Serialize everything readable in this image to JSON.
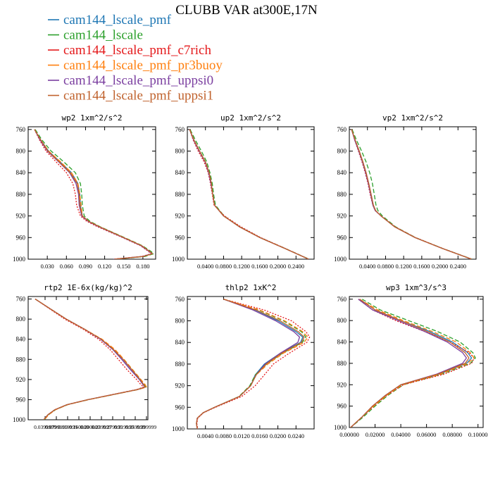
{
  "figure": {
    "title": "CLUBB VAR at300E,17N"
  },
  "legend": [
    {
      "name": "cam144_lscale_pmf",
      "color": "#1f77b4",
      "dash": "solid"
    },
    {
      "name": "cam144_lscale",
      "color": "#2ca02c",
      "dash": "dashed"
    },
    {
      "name": "cam144_lscale_pmf_c7rich",
      "color": "#e41a1c",
      "dash": "dotted"
    },
    {
      "name": "cam144_lscale_pmf_pr3buoy",
      "color": "#ff7f0e",
      "dash": "dashed"
    },
    {
      "name": "cam144_lscale_pmf_uppsi0",
      "color": "#7b3fa0",
      "dash": "solid"
    },
    {
      "name": "cam144_lscale_pmf_uppsi1",
      "color": "#c0622d",
      "dash": "solid"
    }
  ],
  "chart_data": [
    {
      "type": "line",
      "title": "wp2   1xm^2/s^2",
      "xlim": [
        0.0,
        0.2
      ],
      "xticks": [
        0.03,
        0.06,
        0.09,
        0.12,
        0.15,
        0.18
      ],
      "xticklabels": [
        "0.030",
        "0.060",
        "0.090",
        "0.120",
        "0.150",
        "0.180"
      ],
      "ylim": [
        1000,
        755
      ],
      "yticks": [
        760,
        800,
        840,
        880,
        920,
        960,
        1000
      ],
      "y": [
        760,
        780,
        800,
        820,
        840,
        860,
        880,
        900,
        920,
        930,
        940,
        960,
        975,
        985,
        990,
        995,
        1000
      ],
      "series": [
        {
          "name": "cam144_lscale_pmf",
          "values": [
            0.01,
            0.02,
            0.032,
            0.05,
            0.068,
            0.078,
            0.081,
            0.082,
            0.085,
            0.095,
            0.112,
            0.15,
            0.178,
            0.19,
            0.195,
            0.18,
            0.135
          ]
        },
        {
          "name": "cam144_lscale",
          "values": [
            0.011,
            0.022,
            0.036,
            0.056,
            0.074,
            0.082,
            0.084,
            0.085,
            0.088,
            0.097,
            0.113,
            0.151,
            0.179,
            0.192,
            0.197,
            0.183,
            0.138
          ]
        },
        {
          "name": "cam144_lscale_pmf_c7rich",
          "values": [
            0.01,
            0.018,
            0.028,
            0.044,
            0.06,
            0.07,
            0.074,
            0.076,
            0.082,
            0.092,
            0.109,
            0.148,
            0.176,
            0.188,
            0.193,
            0.178,
            0.133
          ]
        },
        {
          "name": "cam144_lscale_pmf_pr3buoy",
          "values": [
            0.01,
            0.02,
            0.032,
            0.051,
            0.068,
            0.078,
            0.081,
            0.083,
            0.085,
            0.095,
            0.112,
            0.15,
            0.178,
            0.19,
            0.195,
            0.18,
            0.135
          ]
        },
        {
          "name": "cam144_lscale_pmf_uppsi0",
          "values": [
            0.01,
            0.019,
            0.03,
            0.048,
            0.065,
            0.075,
            0.079,
            0.08,
            0.084,
            0.094,
            0.111,
            0.149,
            0.177,
            0.189,
            0.194,
            0.179,
            0.134
          ]
        },
        {
          "name": "cam144_lscale_pmf_uppsi1",
          "values": [
            0.01,
            0.02,
            0.031,
            0.049,
            0.066,
            0.077,
            0.08,
            0.081,
            0.085,
            0.095,
            0.112,
            0.15,
            0.178,
            0.19,
            0.195,
            0.18,
            0.135
          ]
        }
      ]
    },
    {
      "type": "line",
      "title": "up2   1xm^2/s^2",
      "xlim": [
        0.0,
        0.28
      ],
      "xticks": [
        0.04,
        0.08,
        0.12,
        0.16,
        0.2,
        0.24
      ],
      "xticklabels": [
        "0.0400",
        "0.0800",
        "0.1200",
        "0.1600",
        "0.2000",
        "0.2400"
      ],
      "ylim": [
        1000,
        755
      ],
      "yticks": [
        760,
        800,
        840,
        880,
        920,
        960,
        1000
      ],
      "y": [
        760,
        780,
        800,
        820,
        840,
        860,
        880,
        900,
        920,
        940,
        960,
        980,
        1000
      ],
      "series": [
        {
          "name": "cam144_lscale_pmf",
          "values": [
            0.005,
            0.015,
            0.027,
            0.04,
            0.048,
            0.053,
            0.056,
            0.06,
            0.08,
            0.115,
            0.16,
            0.215,
            0.268
          ]
        },
        {
          "name": "cam144_lscale",
          "values": [
            0.006,
            0.018,
            0.031,
            0.043,
            0.05,
            0.055,
            0.058,
            0.062,
            0.081,
            0.116,
            0.161,
            0.216,
            0.269
          ]
        },
        {
          "name": "cam144_lscale_pmf_c7rich",
          "values": [
            0.005,
            0.013,
            0.024,
            0.037,
            0.046,
            0.051,
            0.055,
            0.059,
            0.082,
            0.118,
            0.162,
            0.216,
            0.268
          ]
        },
        {
          "name": "cam144_lscale_pmf_pr3buoy",
          "values": [
            0.005,
            0.015,
            0.027,
            0.04,
            0.048,
            0.053,
            0.056,
            0.06,
            0.08,
            0.115,
            0.16,
            0.215,
            0.268
          ]
        },
        {
          "name": "cam144_lscale_pmf_uppsi0",
          "values": [
            0.005,
            0.014,
            0.026,
            0.039,
            0.047,
            0.052,
            0.056,
            0.06,
            0.08,
            0.115,
            0.16,
            0.215,
            0.268
          ]
        },
        {
          "name": "cam144_lscale_pmf_uppsi1",
          "values": [
            0.005,
            0.015,
            0.027,
            0.04,
            0.048,
            0.053,
            0.056,
            0.06,
            0.08,
            0.115,
            0.16,
            0.215,
            0.268
          ]
        }
      ]
    },
    {
      "type": "line",
      "title": "vp2   1xm^2/s^2",
      "xlim": [
        0.0,
        0.28
      ],
      "xticks": [
        0.04,
        0.08,
        0.12,
        0.16,
        0.2,
        0.24
      ],
      "xticklabels": [
        "0.0400",
        "0.0800",
        "0.1200",
        "0.1600",
        "0.2000",
        "0.2400"
      ],
      "ylim": [
        1000,
        755
      ],
      "yticks": [
        760,
        800,
        840,
        880,
        920,
        960,
        1000
      ],
      "y": [
        760,
        780,
        800,
        820,
        840,
        860,
        880,
        900,
        910,
        920,
        940,
        960,
        980,
        1000
      ],
      "series": [
        {
          "name": "cam144_lscale_pmf",
          "values": [
            0.005,
            0.013,
            0.022,
            0.03,
            0.037,
            0.043,
            0.048,
            0.053,
            0.058,
            0.07,
            0.1,
            0.145,
            0.205,
            0.27
          ]
        },
        {
          "name": "cam144_lscale",
          "values": [
            0.006,
            0.016,
            0.027,
            0.037,
            0.045,
            0.051,
            0.055,
            0.059,
            0.063,
            0.073,
            0.102,
            0.146,
            0.206,
            0.271
          ]
        },
        {
          "name": "cam144_lscale_pmf_c7rich",
          "values": [
            0.005,
            0.012,
            0.02,
            0.028,
            0.035,
            0.041,
            0.046,
            0.052,
            0.057,
            0.07,
            0.101,
            0.146,
            0.206,
            0.27
          ]
        },
        {
          "name": "cam144_lscale_pmf_pr3buoy",
          "values": [
            0.005,
            0.013,
            0.022,
            0.03,
            0.037,
            0.043,
            0.048,
            0.053,
            0.058,
            0.07,
            0.1,
            0.145,
            0.205,
            0.27
          ]
        },
        {
          "name": "cam144_lscale_pmf_uppsi0",
          "values": [
            0.005,
            0.012,
            0.021,
            0.029,
            0.036,
            0.042,
            0.047,
            0.052,
            0.057,
            0.07,
            0.1,
            0.145,
            0.205,
            0.27
          ]
        },
        {
          "name": "cam144_lscale_pmf_uppsi1",
          "values": [
            0.005,
            0.013,
            0.022,
            0.03,
            0.037,
            0.043,
            0.048,
            0.053,
            0.058,
            0.07,
            0.1,
            0.145,
            0.205,
            0.27
          ]
        }
      ]
    },
    {
      "type": "line",
      "title": "rtp2   1E-6x(kg/kg)^2",
      "xlim": [
        0.0,
        1.7
      ],
      "xticks": [
        0.24,
        0.4,
        0.56,
        0.72,
        0.88,
        1.04,
        1.2,
        1.36,
        1.52,
        1.68
      ],
      "xticklabels": [
        "0.0399999",
        "0.0799999",
        "0.119999",
        "0.160000",
        "0.200000",
        "0.239999",
        "0.279999",
        "0.319999",
        "0.359999",
        "0.399999"
      ],
      "ylim": [
        1000,
        755
      ],
      "yticks": [
        760,
        800,
        840,
        880,
        920,
        960,
        1000
      ],
      "y": [
        760,
        780,
        800,
        820,
        840,
        860,
        880,
        900,
        920,
        930,
        935,
        940,
        950,
        960,
        970,
        980,
        990,
        1000
      ],
      "series": [
        {
          "name": "cam144_lscale_pmf",
          "values": [
            0.1,
            0.32,
            0.54,
            0.8,
            1.03,
            1.2,
            1.33,
            1.45,
            1.58,
            1.63,
            1.66,
            1.55,
            1.2,
            0.85,
            0.55,
            0.38,
            0.28,
            0.22
          ]
        },
        {
          "name": "cam144_lscale",
          "values": [
            0.1,
            0.32,
            0.54,
            0.8,
            1.04,
            1.22,
            1.36,
            1.48,
            1.6,
            1.65,
            1.67,
            1.56,
            1.21,
            0.86,
            0.56,
            0.39,
            0.29,
            0.23
          ]
        },
        {
          "name": "cam144_lscale_pmf_c7rich",
          "values": [
            0.1,
            0.31,
            0.52,
            0.78,
            1.0,
            1.16,
            1.28,
            1.4,
            1.54,
            1.6,
            1.64,
            1.54,
            1.19,
            0.85,
            0.55,
            0.38,
            0.28,
            0.22
          ]
        },
        {
          "name": "cam144_lscale_pmf_pr3buoy",
          "values": [
            0.1,
            0.32,
            0.54,
            0.8,
            1.05,
            1.23,
            1.36,
            1.48,
            1.6,
            1.66,
            1.68,
            1.56,
            1.21,
            0.86,
            0.56,
            0.39,
            0.29,
            0.23
          ]
        },
        {
          "name": "cam144_lscale_pmf_uppsi0",
          "values": [
            0.1,
            0.32,
            0.54,
            0.8,
            1.03,
            1.2,
            1.33,
            1.45,
            1.58,
            1.63,
            1.66,
            1.55,
            1.2,
            0.85,
            0.55,
            0.38,
            0.28,
            0.22
          ]
        },
        {
          "name": "cam144_lscale_pmf_uppsi1",
          "values": [
            0.1,
            0.32,
            0.54,
            0.8,
            1.04,
            1.21,
            1.35,
            1.47,
            1.59,
            1.64,
            1.66,
            1.55,
            1.2,
            0.85,
            0.55,
            0.38,
            0.28,
            0.22
          ]
        }
      ]
    },
    {
      "type": "line",
      "title": "thlp2   1xK^2",
      "xlim": [
        0.0,
        0.28
      ],
      "xticks": [
        0.04,
        0.08,
        0.12,
        0.16,
        0.2,
        0.24
      ],
      "xticklabels": [
        "0.0040",
        "0.0080",
        "0.0120",
        "0.0160",
        "0.0200",
        "0.0240"
      ],
      "ylim": [
        1000,
        755
      ],
      "yticks": [
        760,
        800,
        840,
        880,
        920,
        960,
        1000
      ],
      "y": [
        760,
        780,
        800,
        820,
        830,
        840,
        860,
        880,
        900,
        920,
        940,
        960,
        970,
        980,
        990,
        1000
      ],
      "series": [
        {
          "name": "cam144_lscale_pmf",
          "values": [
            0.08,
            0.15,
            0.2,
            0.24,
            0.255,
            0.25,
            0.205,
            0.17,
            0.15,
            0.14,
            0.115,
            0.06,
            0.035,
            0.022,
            0.02,
            0.022
          ]
        },
        {
          "name": "cam144_lscale",
          "values": [
            0.08,
            0.158,
            0.212,
            0.252,
            0.262,
            0.254,
            0.21,
            0.175,
            0.15,
            0.138,
            0.114,
            0.06,
            0.035,
            0.022,
            0.02,
            0.022
          ]
        },
        {
          "name": "cam144_lscale_pmf_c7rich",
          "values": [
            0.08,
            0.17,
            0.23,
            0.262,
            0.27,
            0.264,
            0.225,
            0.19,
            0.17,
            0.15,
            0.12,
            0.062,
            0.036,
            0.023,
            0.021,
            0.023
          ]
        },
        {
          "name": "cam144_lscale_pmf_pr3buoy",
          "values": [
            0.08,
            0.16,
            0.215,
            0.255,
            0.266,
            0.258,
            0.212,
            0.178,
            0.152,
            0.14,
            0.115,
            0.06,
            0.035,
            0.022,
            0.02,
            0.022
          ]
        },
        {
          "name": "cam144_lscale_pmf_uppsi0",
          "values": [
            0.08,
            0.145,
            0.195,
            0.235,
            0.248,
            0.244,
            0.205,
            0.172,
            0.152,
            0.14,
            0.115,
            0.06,
            0.035,
            0.022,
            0.02,
            0.022
          ]
        },
        {
          "name": "cam144_lscale_pmf_uppsi1",
          "values": [
            0.08,
            0.152,
            0.205,
            0.245,
            0.258,
            0.252,
            0.208,
            0.174,
            0.152,
            0.14,
            0.115,
            0.06,
            0.035,
            0.022,
            0.02,
            0.022
          ]
        }
      ]
    },
    {
      "type": "line",
      "title": "wp3   1xm^3/s^3",
      "xlim": [
        0.0,
        0.104
      ],
      "xticks": [
        0.0,
        0.02,
        0.04,
        0.06,
        0.08,
        0.1
      ],
      "xticklabels": [
        "0.00000",
        "0.02000",
        "0.04000",
        "0.06000",
        "0.08000",
        "0.10000"
      ],
      "ylim": [
        1000,
        755
      ],
      "yticks": [
        760,
        800,
        840,
        880,
        920,
        960,
        1000
      ],
      "y": [
        760,
        780,
        800,
        820,
        840,
        860,
        870,
        880,
        900,
        920,
        940,
        960,
        980,
        1000
      ],
      "series": [
        {
          "name": "cam144_lscale_pmf",
          "values": [
            0.008,
            0.02,
            0.04,
            0.062,
            0.08,
            0.092,
            0.095,
            0.091,
            0.07,
            0.04,
            0.028,
            0.018,
            0.01,
            0.001
          ]
        },
        {
          "name": "cam144_lscale",
          "values": [
            0.01,
            0.024,
            0.046,
            0.068,
            0.086,
            0.096,
            0.098,
            0.094,
            0.072,
            0.042,
            0.03,
            0.02,
            0.011,
            0.001
          ]
        },
        {
          "name": "cam144_lscale_pmf_c7rich",
          "values": [
            0.007,
            0.018,
            0.036,
            0.058,
            0.078,
            0.093,
            0.097,
            0.095,
            0.074,
            0.042,
            0.029,
            0.019,
            0.01,
            0.001
          ]
        },
        {
          "name": "cam144_lscale_pmf_pr3buoy",
          "values": [
            0.008,
            0.022,
            0.042,
            0.064,
            0.083,
            0.094,
            0.097,
            0.092,
            0.071,
            0.041,
            0.029,
            0.019,
            0.01,
            0.001
          ]
        },
        {
          "name": "cam144_lscale_pmf_uppsi0",
          "values": [
            0.007,
            0.018,
            0.038,
            0.058,
            0.076,
            0.088,
            0.091,
            0.088,
            0.068,
            0.04,
            0.028,
            0.018,
            0.01,
            0.001
          ]
        },
        {
          "name": "cam144_lscale_pmf_uppsi1",
          "values": [
            0.008,
            0.02,
            0.04,
            0.06,
            0.078,
            0.09,
            0.093,
            0.09,
            0.069,
            0.04,
            0.028,
            0.018,
            0.01,
            0.001
          ]
        }
      ]
    }
  ]
}
